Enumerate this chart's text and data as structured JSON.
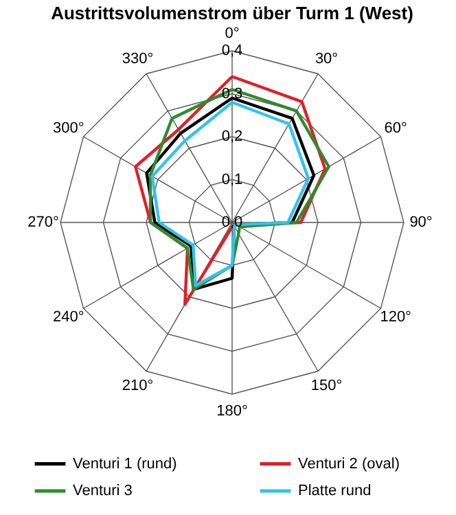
{
  "chart_data": {
    "type": "radar",
    "title": "Austrittsvolumenstrom über Turm 1 (West)",
    "categories": [
      "0°",
      "30°",
      "60°",
      "90°",
      "120°",
      "150°",
      "180°",
      "210°",
      "240°",
      "270°",
      "300°",
      "330°"
    ],
    "ylim": [
      0,
      0.4
    ],
    "yticks": [
      {
        "value": 0,
        "label": "0,0"
      },
      {
        "value": 0.1,
        "label": "0,1"
      },
      {
        "value": 0.2,
        "label": "0,2"
      },
      {
        "value": 0.3,
        "label": "0,3"
      },
      {
        "value": 0.4,
        "label": "0,4"
      }
    ],
    "grid": true,
    "legend": "bottom",
    "line_style": "solid",
    "marker": "none",
    "series": [
      {
        "name": "Venturi 1 (rund)",
        "color": "#000000",
        "values": [
          0.29,
          0.28,
          0.22,
          0.14,
          0.01,
          0.01,
          0.13,
          0.18,
          0.11,
          0.18,
          0.23,
          0.24
        ]
      },
      {
        "name": "Venturi 2 (oval)",
        "color": "#e0202a",
        "values": [
          0.34,
          0.325,
          0.25,
          0.16,
          0.01,
          0.01,
          0.01,
          0.22,
          0.12,
          0.19,
          0.26,
          0.25
        ]
      },
      {
        "name": "Venturi 3",
        "color": "#2e8b2e",
        "values": [
          0.31,
          0.3,
          0.26,
          0.15,
          0.02,
          0.03,
          0.1,
          0.18,
          0.12,
          0.19,
          0.22,
          0.28
        ]
      },
      {
        "name": "Platte rund",
        "color": "#33c3e8",
        "values": [
          0.28,
          0.265,
          0.205,
          0.13,
          0.01,
          0.01,
          0.1,
          0.17,
          0.105,
          0.17,
          0.215,
          0.22
        ]
      }
    ]
  }
}
